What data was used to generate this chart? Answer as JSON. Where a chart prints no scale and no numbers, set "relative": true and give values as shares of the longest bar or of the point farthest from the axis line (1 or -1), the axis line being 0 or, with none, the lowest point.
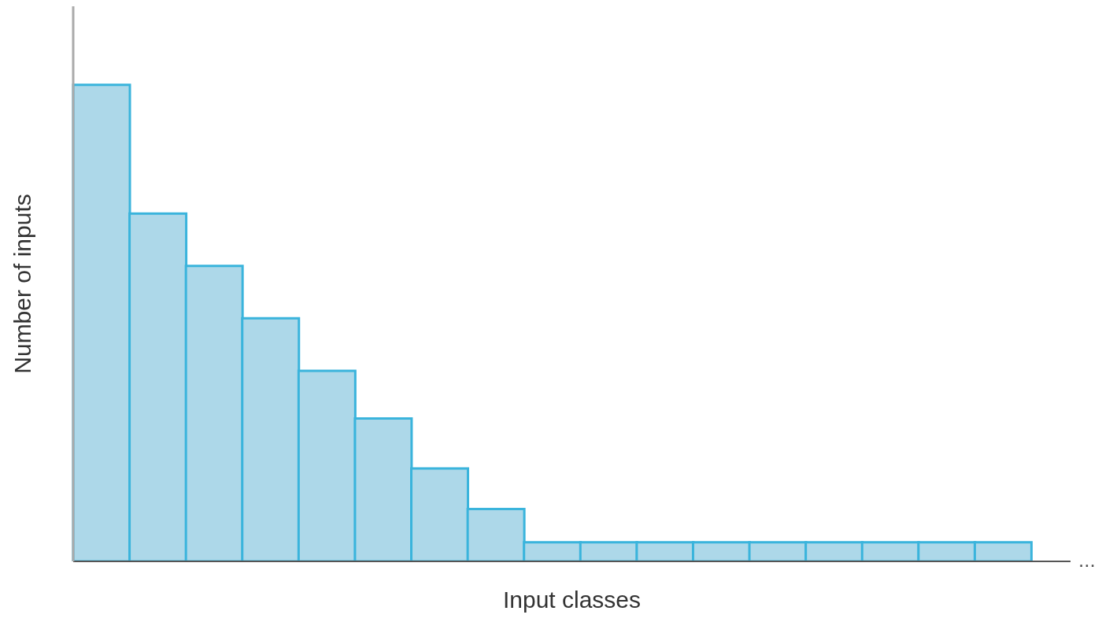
{
  "chart_data": {
    "type": "bar",
    "relative": true,
    "xlabel": "Input classes",
    "ylabel": "Number of inputs",
    "categories": [
      null,
      null,
      null,
      null,
      null,
      null,
      null,
      null,
      null,
      null,
      null,
      null,
      null,
      null,
      null,
      null,
      null
    ],
    "values": [
      1,
      0.73,
      0.62,
      0.51,
      0.4,
      0.3,
      0.195,
      0.11,
      0.04,
      0.04,
      0.04,
      0.04,
      0.04,
      0.04,
      0.04,
      0.04,
      0.04
    ],
    "color": "#add8e9",
    "annotations": [
      "..."
    ]
  }
}
